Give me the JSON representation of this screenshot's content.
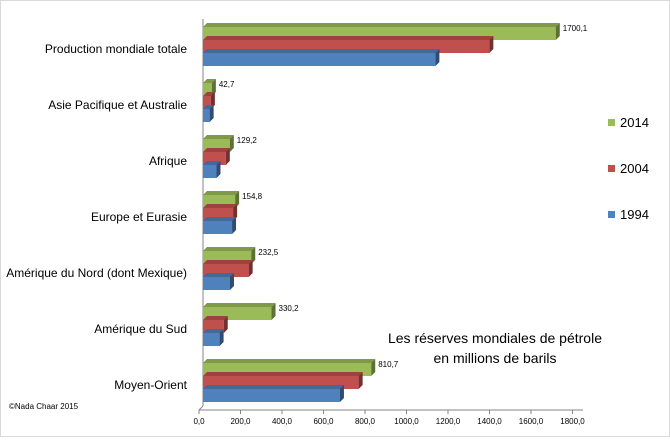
{
  "chart_data": {
    "type": "bar",
    "orientation": "horizontal",
    "title": "",
    "xlabel": "",
    "ylabel": "",
    "categories": [
      "Production mondiale totale",
      "Asie Pacifique et Australie",
      "Afrique",
      "Europe et Eurasie",
      "Amérique du Nord (dont Mexique)",
      "Amérique du Sud",
      "Moyen-Orient"
    ],
    "series": [
      {
        "name": "2014",
        "color": "#9bbb59",
        "values": [
          1700.1,
          42.7,
          129.2,
          154.8,
          232.5,
          330.2,
          810.7
        ],
        "labels": [
          "1700,1",
          "42,7",
          "129,2",
          "154,8",
          "232,5",
          "330,2",
          "810,7"
        ]
      },
      {
        "name": "2004",
        "color": "#c0504d",
        "values": [
          1380,
          38,
          110,
          145,
          220,
          100,
          750
        ]
      },
      {
        "name": "1994",
        "color": "#4f81bd",
        "values": [
          1120,
          32,
          65,
          140,
          130,
          80,
          660
        ]
      }
    ],
    "xlim": [
      0,
      1800
    ],
    "xticks": [
      "0,0",
      "200,0",
      "400,0",
      "600,0",
      "800,0",
      "1000,0",
      "1200,0",
      "1400,0",
      "1600,0",
      "1800,0"
    ],
    "legend_position": "right",
    "grid": false,
    "annotation": [
      "Les réserves  mondiales de pétrole",
      "en millions de barils"
    ],
    "credit": "©Nada Chaar 2015"
  }
}
